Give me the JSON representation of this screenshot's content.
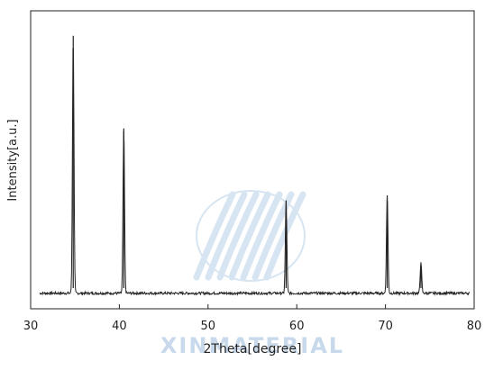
{
  "chart_data": {
    "type": "line",
    "title": "",
    "xlabel": "2Theta[degree]",
    "ylabel": "Intensity[a.u.]",
    "xlim": [
      30,
      80
    ],
    "ylim": [
      0,
      100
    ],
    "grid": false,
    "legend": "none",
    "x_ticks": [
      "30",
      "40",
      "50",
      "60",
      "70",
      "80"
    ],
    "series": [
      {
        "peaks": [
          {
            "x": 34.8,
            "y": 100
          },
          {
            "x": 40.5,
            "y": 64
          },
          {
            "x": 58.8,
            "y": 36
          },
          {
            "x": 70.2,
            "y": 38
          },
          {
            "x": 74.0,
            "y": 12
          }
        ],
        "baseline": 1.5,
        "color": "#222222"
      }
    ]
  },
  "watermark": {
    "text": "XINMATERIAL",
    "color": "#b8cfe8"
  }
}
